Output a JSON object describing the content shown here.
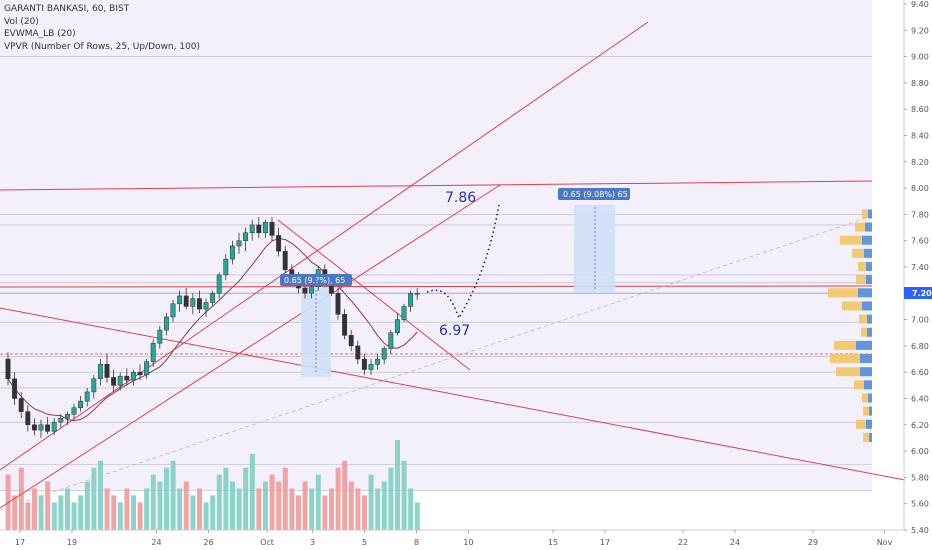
{
  "legend": {
    "title": "GARANTI BANKASI, 60, BIST",
    "vol": "Vol (20)",
    "evwma": "EVWMA_LB (20)",
    "vpvr": "VPVR (Number Of Rows, 25, Up/Down, 100)"
  },
  "chart_data": {
    "type": "candlestick",
    "symbol": "GARANTI BANKASI",
    "timeframe": "60",
    "exchange": "BIST",
    "y_range": [
      5.4,
      9.4
    ],
    "y_ticks": [
      "5.40",
      "5.60",
      "5.80",
      "6.00",
      "6.20",
      "6.40",
      "6.60",
      "6.80",
      "7.00",
      "7.20",
      "7.40",
      "7.60",
      "7.80",
      "8.00",
      "8.20",
      "8.40",
      "8.60",
      "8.80",
      "9.00",
      "9.20",
      "9.40"
    ],
    "x_ticks": [
      "17",
      "19",
      "24",
      "26",
      "Oct",
      "3",
      "5",
      "8",
      "10",
      "15",
      "17",
      "22",
      "24",
      "29",
      "Nov"
    ],
    "x_tick_pos": [
      0,
      8,
      21,
      29,
      38,
      45,
      53,
      61,
      69,
      82,
      90,
      102,
      110,
      122,
      133
    ],
    "last_price": "7.20",
    "annotations": {
      "target_high": "7.86",
      "target_low": "6.97",
      "measure_right": "0.65 (9.08%) 65",
      "measure_left": "0.65 (9.?%), 65"
    },
    "candles": [
      [
        6.7,
        6.75,
        6.5,
        6.55
      ],
      [
        6.55,
        6.6,
        6.35,
        6.4
      ],
      [
        6.4,
        6.45,
        6.25,
        6.3
      ],
      [
        6.3,
        6.35,
        6.15,
        6.2
      ],
      [
        6.2,
        6.25,
        6.12,
        6.16
      ],
      [
        6.16,
        6.24,
        6.1,
        6.2
      ],
      [
        6.2,
        6.26,
        6.13,
        6.15
      ],
      [
        6.15,
        6.25,
        6.12,
        6.22
      ],
      [
        6.22,
        6.28,
        6.18,
        6.25
      ],
      [
        6.25,
        6.3,
        6.2,
        6.28
      ],
      [
        6.28,
        6.36,
        6.24,
        6.33
      ],
      [
        6.33,
        6.42,
        6.3,
        6.38
      ],
      [
        6.38,
        6.48,
        6.34,
        6.45
      ],
      [
        6.45,
        6.58,
        6.4,
        6.55
      ],
      [
        6.55,
        6.7,
        6.5,
        6.66
      ],
      [
        6.66,
        6.74,
        6.52,
        6.56
      ],
      [
        6.56,
        6.62,
        6.45,
        6.5
      ],
      [
        6.5,
        6.6,
        6.46,
        6.57
      ],
      [
        6.57,
        6.63,
        6.5,
        6.54
      ],
      [
        6.54,
        6.62,
        6.5,
        6.6
      ],
      [
        6.6,
        6.66,
        6.54,
        6.58
      ],
      [
        6.58,
        6.7,
        6.55,
        6.68
      ],
      [
        6.68,
        6.85,
        6.64,
        6.82
      ],
      [
        6.82,
        6.95,
        6.78,
        6.92
      ],
      [
        6.92,
        7.05,
        6.88,
        7.02
      ],
      [
        7.02,
        7.15,
        6.98,
        7.12
      ],
      [
        7.12,
        7.22,
        7.06,
        7.18
      ],
      [
        7.18,
        7.24,
        7.08,
        7.1
      ],
      [
        7.1,
        7.2,
        7.04,
        7.16
      ],
      [
        7.16,
        7.22,
        7.05,
        7.08
      ],
      [
        7.08,
        7.16,
        7.02,
        7.13
      ],
      [
        7.13,
        7.22,
        7.1,
        7.2
      ],
      [
        7.2,
        7.36,
        7.16,
        7.34
      ],
      [
        7.34,
        7.5,
        7.3,
        7.46
      ],
      [
        7.46,
        7.6,
        7.42,
        7.56
      ],
      [
        7.56,
        7.66,
        7.5,
        7.6
      ],
      [
        7.6,
        7.7,
        7.52,
        7.66
      ],
      [
        7.66,
        7.76,
        7.6,
        7.72
      ],
      [
        7.72,
        7.78,
        7.62,
        7.66
      ],
      [
        7.66,
        7.76,
        7.62,
        7.74
      ],
      [
        7.74,
        7.78,
        7.6,
        7.64
      ],
      [
        7.64,
        7.7,
        7.48,
        7.52
      ],
      [
        7.52,
        7.56,
        7.35,
        7.38
      ],
      [
        7.38,
        7.42,
        7.26,
        7.3
      ],
      [
        7.3,
        7.36,
        7.2,
        7.24
      ],
      [
        7.24,
        7.3,
        7.16,
        7.2
      ],
      [
        7.2,
        7.28,
        7.16,
        7.25
      ],
      [
        7.25,
        7.4,
        7.22,
        7.38
      ],
      [
        7.38,
        7.42,
        7.28,
        7.3
      ],
      [
        7.3,
        7.34,
        7.18,
        7.2
      ],
      [
        7.2,
        7.24,
        7.0,
        7.04
      ],
      [
        7.04,
        7.08,
        6.85,
        6.88
      ],
      [
        6.88,
        6.92,
        6.76,
        6.8
      ],
      [
        6.8,
        6.84,
        6.66,
        6.7
      ],
      [
        6.7,
        6.74,
        6.58,
        6.62
      ],
      [
        6.62,
        6.7,
        6.58,
        6.66
      ],
      [
        6.66,
        6.74,
        6.62,
        6.7
      ],
      [
        6.7,
        6.8,
        6.66,
        6.78
      ],
      [
        6.78,
        6.92,
        6.74,
        6.9
      ],
      [
        6.9,
        7.05,
        6.88,
        7.0
      ],
      [
        7.0,
        7.12,
        6.98,
        7.1
      ],
      [
        7.1,
        7.22,
        7.06,
        7.2
      ],
      [
        7.2,
        7.24,
        7.15,
        7.2
      ]
    ],
    "volumes": [
      0.8,
      0.5,
      0.9,
      0.4,
      0.6,
      0.5,
      0.7,
      0.4,
      0.5,
      0.6,
      0.4,
      0.5,
      0.7,
      0.9,
      1.0,
      0.6,
      0.5,
      0.4,
      0.6,
      0.5,
      0.4,
      0.6,
      0.8,
      0.7,
      0.9,
      1.0,
      0.6,
      0.7,
      0.5,
      0.6,
      0.4,
      0.5,
      0.8,
      0.9,
      0.7,
      0.6,
      0.9,
      1.1,
      0.6,
      0.7,
      0.8,
      0.7,
      0.9,
      0.6,
      0.5,
      0.7,
      0.6,
      0.8,
      0.5,
      0.6,
      0.9,
      1.0,
      0.7,
      0.6,
      0.5,
      0.8,
      0.6,
      0.7,
      0.9,
      1.3,
      1.0,
      0.6,
      0.4
    ],
    "vpvr": [
      {
        "price": 7.8,
        "up": 6,
        "down": 4
      },
      {
        "price": 7.7,
        "up": 10,
        "down": 7
      },
      {
        "price": 7.6,
        "up": 22,
        "down": 10
      },
      {
        "price": 7.5,
        "up": 12,
        "down": 8
      },
      {
        "price": 7.4,
        "up": 8,
        "down": 6
      },
      {
        "price": 7.3,
        "up": 10,
        "down": 6
      },
      {
        "price": 7.2,
        "up": 30,
        "down": 14
      },
      {
        "price": 7.1,
        "up": 20,
        "down": 10
      },
      {
        "price": 7.0,
        "up": 8,
        "down": 5
      },
      {
        "price": 6.9,
        "up": 6,
        "down": 5
      },
      {
        "price": 6.8,
        "up": 22,
        "down": 16
      },
      {
        "price": 6.7,
        "up": 30,
        "down": 12
      },
      {
        "price": 6.6,
        "up": 24,
        "down": 12
      },
      {
        "price": 6.5,
        "up": 10,
        "down": 8
      },
      {
        "price": 6.4,
        "up": 6,
        "down": 4
      },
      {
        "price": 6.3,
        "up": 6,
        "down": 3
      },
      {
        "price": 6.2,
        "up": 10,
        "down": 6
      },
      {
        "price": 6.1,
        "up": 6,
        "down": 3
      }
    ]
  }
}
